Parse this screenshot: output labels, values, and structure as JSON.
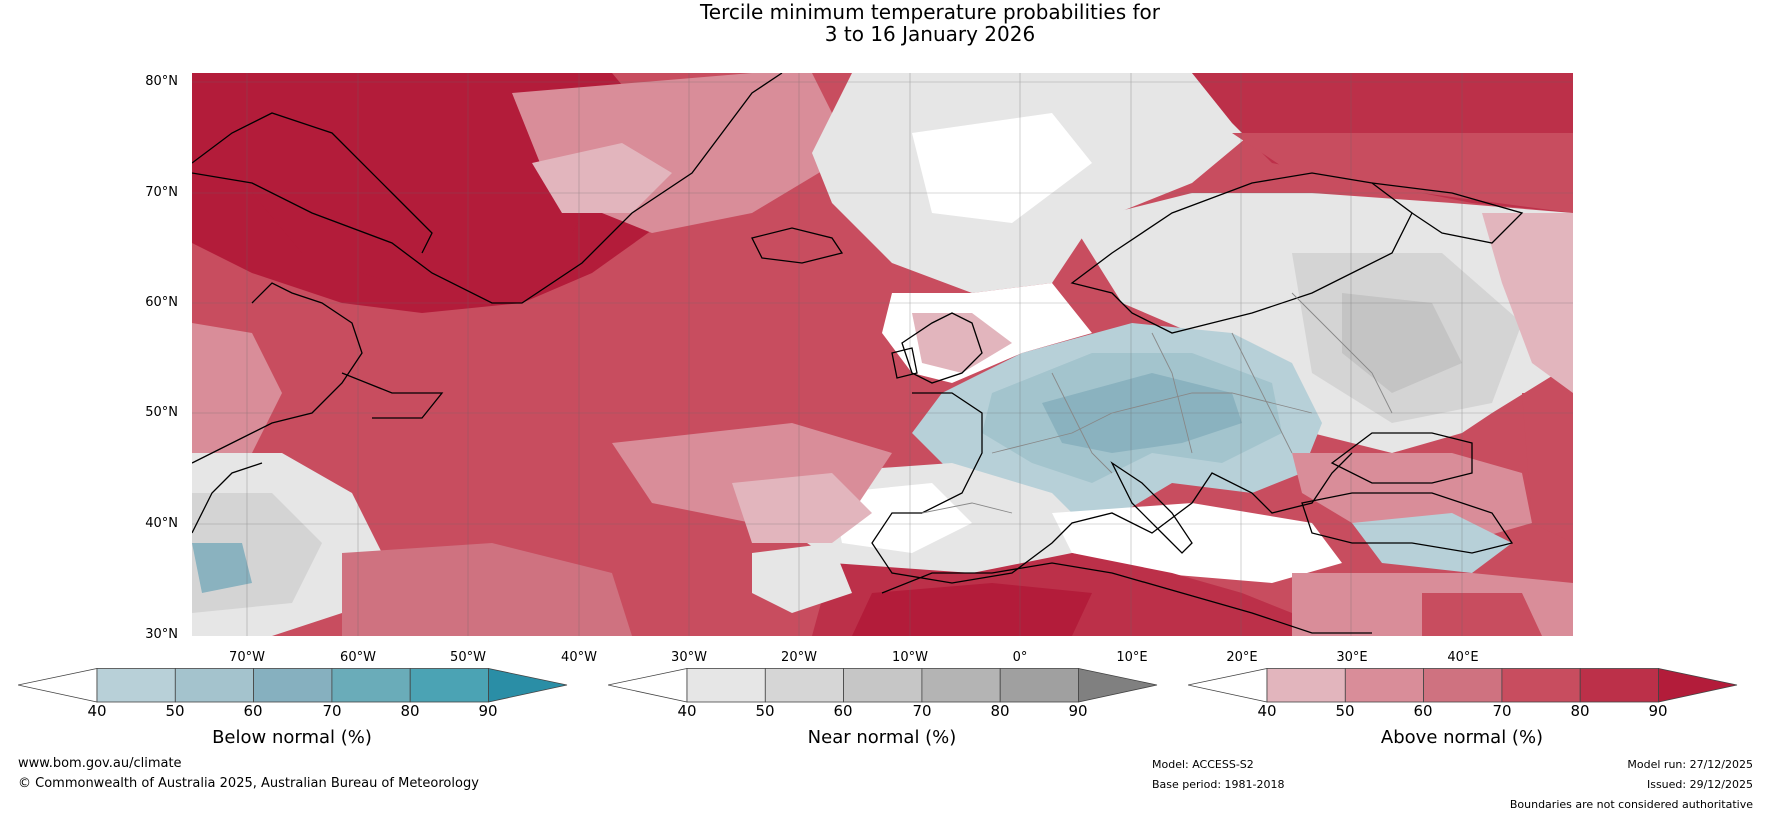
{
  "title": {
    "line1": "Tercile minimum temperature probabilities for",
    "line2": "3 to 16 January 2026"
  },
  "map": {
    "lat_labels": [
      "80°N",
      "70°N",
      "60°N",
      "50°N",
      "40°N",
      "30°N"
    ],
    "lon_labels": [
      "70°W",
      "60°W",
      "50°W",
      "40°W",
      "30°W",
      "20°W",
      "10°W",
      "0°",
      "10°E",
      "20°E",
      "30°E",
      "40°E"
    ],
    "colors": {
      "above_40": "#e2b5bd",
      "above_50": "#d98d99",
      "above_60": "#cf7280",
      "above_70": "#c84d5f",
      "above_80": "#bc3049",
      "above_90": "#b31c3a",
      "near_50": "#e6e6e6",
      "near_60": "#d4d4d4",
      "near_70": "#c4c4c4",
      "below_50": "#b7d0d8",
      "below_60": "#a3c4cd",
      "below_70": "#8ab2bf",
      "coast": "#000000",
      "border": "#888888",
      "grid": "#666666"
    }
  },
  "colorbars": [
    {
      "label": "Below normal (%)",
      "ticks": [
        "40",
        "50",
        "60",
        "70",
        "80",
        "90"
      ],
      "colors": [
        "#ffffff",
        "#b8d0d8",
        "#a4c3cd",
        "#86b0bf",
        "#6aacb9",
        "#4ba3b4",
        "#2a8ea6"
      ]
    },
    {
      "label": "Near normal (%)",
      "ticks": [
        "40",
        "50",
        "60",
        "70",
        "80",
        "90"
      ],
      "colors": [
        "#ffffff",
        "#e6e6e6",
        "#d6d6d6",
        "#c6c6c6",
        "#b4b4b4",
        "#a0a0a0",
        "#808080"
      ]
    },
    {
      "label": "Above normal (%)",
      "ticks": [
        "40",
        "50",
        "60",
        "70",
        "80",
        "90"
      ],
      "colors": [
        "#ffffff",
        "#e2b5bd",
        "#d98d99",
        "#cf7280",
        "#c84d5f",
        "#bc3049",
        "#b31c3a"
      ]
    }
  ],
  "footer": {
    "website": "www.bom.gov.au/climate",
    "copyright": "© Commonwealth of Australia 2025, Australian Bureau of Meteorology",
    "model": "Model: ACCESS-S2",
    "base_period": "Base period: 1981-2018",
    "model_run": "Model run: 27/12/2025",
    "issued": "Issued: 29/12/2025",
    "disclaimer": "Boundaries are not considered authoritative"
  }
}
